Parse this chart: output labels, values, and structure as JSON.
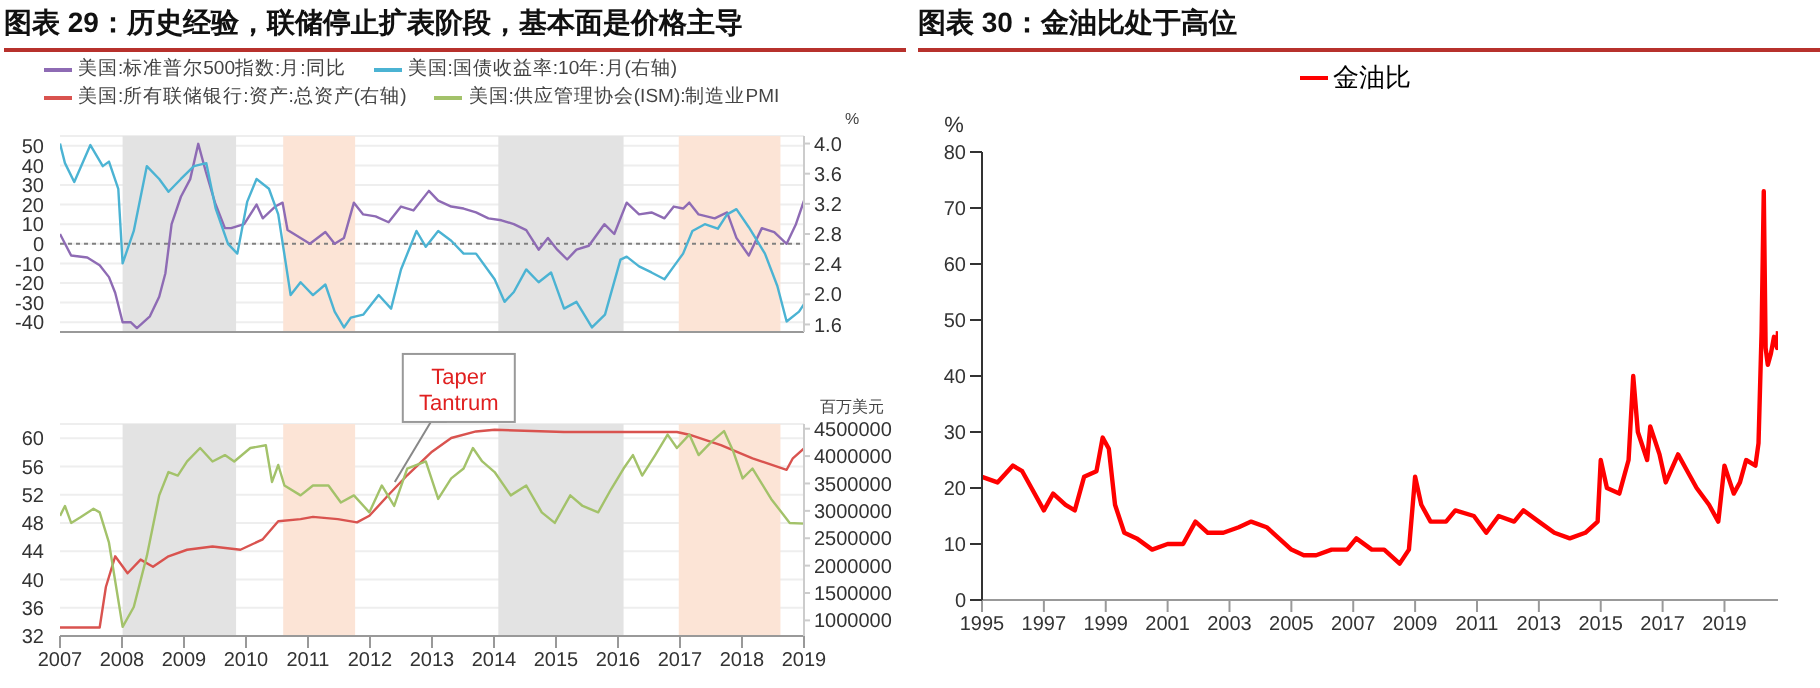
{
  "chart_data": [
    {
      "type": "line",
      "title": "图表 29：历史经验，联储停止扩表阶段，基本面是价格主导",
      "y2label": "%",
      "legend": "top",
      "grid": "y",
      "tick_labels": "y",
      "xlim": [
        2007,
        2019
      ],
      "xticks": [
        2007,
        2008,
        2009,
        2010,
        2011,
        2012,
        2013,
        2014,
        2015,
        2016,
        2017,
        2018,
        2019
      ],
      "ylim": [
        -45,
        55
      ],
      "yticks": [
        -40,
        -30,
        -20,
        -10,
        0,
        10,
        20,
        30,
        40,
        50
      ],
      "y2lim": [
        1.5,
        4.1
      ],
      "y2ticks": [
        {
          "value": 1.6,
          "label": "1.6"
        },
        {
          "value": 2,
          "label": "2.0"
        },
        2.4,
        2.8,
        3.2,
        3.6,
        {
          "value": 4,
          "label": "4.0"
        }
      ],
      "ref_lines": [
        {
          "axis": "y",
          "value": 0,
          "color": "#808080",
          "line_style": "dotted"
        }
      ],
      "bands": [
        {
          "axis": "x",
          "from": 2008.01,
          "to": 2009.84,
          "color": "#e3e3e3"
        },
        {
          "axis": "x",
          "from": 2010.6,
          "to": 2011.76,
          "color": "#fce4d6"
        },
        {
          "axis": "x",
          "from": 2014.07,
          "to": 2016.09,
          "color": "#e3e3e3"
        },
        {
          "axis": "x",
          "from": 2016.98,
          "to": 2018.62,
          "color": "#fce4d6"
        }
      ],
      "series": [
        {
          "name": "美国:标准普尔500指数:月:同比",
          "color": "#8e6bb4",
          "x": [
            2007.0,
            2007.18,
            2007.44,
            2007.64,
            2007.79,
            2007.89,
            2008.01,
            2008.14,
            2008.24,
            2008.45,
            2008.6,
            2008.7,
            2008.8,
            2008.95,
            2009.1,
            2009.23,
            2009.35,
            2009.5,
            2009.66,
            2009.76,
            2009.97,
            2010.17,
            2010.27,
            2010.47,
            2010.59,
            2010.67,
            2010.88,
            2011.03,
            2011.28,
            2011.43,
            2011.58,
            2011.74,
            2011.89,
            2012.09,
            2012.3,
            2012.5,
            2012.7,
            2012.95,
            2013.1,
            2013.31,
            2013.51,
            2013.71,
            2013.91,
            2014.12,
            2014.32,
            2014.52,
            2014.72,
            2014.87,
            2015.02,
            2015.18,
            2015.33,
            2015.53,
            2015.78,
            2015.94,
            2016.14,
            2016.34,
            2016.54,
            2016.75,
            2016.9,
            2017.05,
            2017.15,
            2017.3,
            2017.56,
            2017.76,
            2017.91,
            2018.11,
            2018.32,
            2018.52,
            2018.72,
            2018.87,
            2019.0
          ],
          "values": [
            5,
            -6,
            -7,
            -11,
            -17,
            -25,
            -40,
            -40,
            -43,
            -37,
            -27,
            -15,
            10,
            24,
            33,
            51,
            37,
            21,
            8,
            8,
            10,
            20,
            13,
            19,
            21,
            7,
            3,
            0,
            6,
            0,
            3,
            21,
            15,
            14,
            11,
            19,
            17,
            27,
            22,
            19,
            18,
            16,
            13,
            12,
            10,
            7,
            -3,
            3,
            -3,
            -8,
            -3,
            -1,
            10,
            5,
            21,
            15,
            16,
            13,
            19,
            18,
            21,
            15,
            13,
            16,
            3,
            -6,
            8,
            6,
            0,
            10,
            22
          ]
        },
        {
          "name": "美国:国债收益率:10年:月(右轴)",
          "color": "#4bb3d3",
          "axis": "y2",
          "x": [
            2007.0,
            2007.08,
            2007.23,
            2007.49,
            2007.69,
            2007.79,
            2007.94,
            2008.01,
            2008.19,
            2008.4,
            2008.6,
            2008.75,
            2008.95,
            2009.16,
            2009.36,
            2009.51,
            2009.71,
            2009.86,
            2010.02,
            2010.17,
            2010.37,
            2010.52,
            2010.72,
            2010.88,
            2011.08,
            2011.28,
            2011.43,
            2011.58,
            2011.69,
            2011.89,
            2012.14,
            2012.34,
            2012.5,
            2012.75,
            2012.9,
            2013.1,
            2013.31,
            2013.51,
            2013.71,
            2014.01,
            2014.17,
            2014.32,
            2014.52,
            2014.72,
            2014.92,
            2015.13,
            2015.33,
            2015.58,
            2015.79,
            2016.04,
            2016.14,
            2016.34,
            2016.54,
            2016.75,
            2016.9,
            2017.05,
            2017.2,
            2017.4,
            2017.61,
            2017.76,
            2017.91,
            2018.11,
            2018.37,
            2018.57,
            2018.72,
            2018.92,
            2019.0
          ],
          "values": [
            4.0,
            3.74,
            3.49,
            3.98,
            3.7,
            3.76,
            3.4,
            2.41,
            2.84,
            3.7,
            3.53,
            3.36,
            3.53,
            3.7,
            3.74,
            3.14,
            2.67,
            2.54,
            3.23,
            3.53,
            3.4,
            3.06,
            1.99,
            2.16,
            1.99,
            2.13,
            1.77,
            1.56,
            1.69,
            1.73,
            1.99,
            1.81,
            2.33,
            2.84,
            2.63,
            2.84,
            2.71,
            2.54,
            2.54,
            2.2,
            1.9,
            2.03,
            2.33,
            2.16,
            2.29,
            1.81,
            1.9,
            1.56,
            1.73,
            2.46,
            2.5,
            2.37,
            2.29,
            2.2,
            2.37,
            2.54,
            2.84,
            2.93,
            2.87,
            3.06,
            3.13,
            2.89,
            2.54,
            2.11,
            1.64,
            1.77,
            1.87
          ]
        }
      ]
    },
    {
      "type": "line",
      "y2label": "百万美元",
      "legend": "top",
      "grid": "y",
      "annotations": [
        {
          "text": "Taper Tantrum",
          "x": 2012.4,
          "y": 53.8
        }
      ],
      "xlim": [
        2007,
        2019
      ],
      "xticks": [
        2007,
        2008,
        2009,
        2010,
        2011,
        2012,
        2013,
        2014,
        2015,
        2016,
        2017,
        2018,
        2019
      ],
      "ylim": [
        32,
        62
      ],
      "yticks": [
        32,
        36,
        40,
        44,
        48,
        52,
        56,
        60
      ],
      "y2lim": [
        715000,
        4586000
      ],
      "y2ticks": [
        1000000,
        1500000,
        2000000,
        2500000,
        3000000,
        3500000,
        4000000,
        4500000
      ],
      "bands": [
        {
          "axis": "x",
          "from": 2008.01,
          "to": 2009.84,
          "color": "#e3e3e3"
        },
        {
          "axis": "x",
          "from": 2010.6,
          "to": 2011.76,
          "color": "#fce4d6"
        },
        {
          "axis": "x",
          "from": 2014.07,
          "to": 2016.09,
          "color": "#e3e3e3"
        },
        {
          "axis": "x",
          "from": 2016.98,
          "to": 2018.62,
          "color": "#fce4d6"
        }
      ],
      "series": [
        {
          "name": "美国:所有联储银行:资产:总资产(右轴)",
          "color": "#d9534f",
          "axis": "y2",
          "x": [
            2007.0,
            2007.64,
            2007.74,
            2007.89,
            2008.09,
            2008.3,
            2008.5,
            2008.75,
            2009.05,
            2009.46,
            2009.91,
            2010.27,
            2010.52,
            2010.88,
            2011.08,
            2011.48,
            2011.79,
            2011.99,
            2012.29,
            2012.6,
            2013.0,
            2013.31,
            2013.71,
            2014.01,
            2015.13,
            2016.14,
            2016.95,
            2017.15,
            2017.66,
            2018.17,
            2018.72,
            2018.82,
            2019.0
          ],
          "values": [
            870000,
            870000,
            1610000,
            2170000,
            1860000,
            2110000,
            1980000,
            2170000,
            2290000,
            2350000,
            2290000,
            2480000,
            2810000,
            2850000,
            2890000,
            2850000,
            2790000,
            2910000,
            3280000,
            3650000,
            4080000,
            4330000,
            4450000,
            4480000,
            4440000,
            4440000,
            4440000,
            4390000,
            4200000,
            3960000,
            3750000,
            3960000,
            4140000
          ]
        },
        {
          "name": "美国:供应管理协会(ISM):制造业PMI",
          "color": "#a3c26a",
          "x": [
            2007.0,
            2007.08,
            2007.18,
            2007.33,
            2007.54,
            2007.64,
            2007.79,
            2008.01,
            2008.19,
            2008.4,
            2008.6,
            2008.75,
            2008.9,
            2009.05,
            2009.26,
            2009.46,
            2009.66,
            2009.81,
            2010.07,
            2010.32,
            2010.42,
            2010.52,
            2010.62,
            2010.88,
            2011.08,
            2011.33,
            2011.53,
            2011.74,
            2011.99,
            2012.19,
            2012.39,
            2012.6,
            2012.9,
            2013.1,
            2013.31,
            2013.51,
            2013.66,
            2013.81,
            2014.01,
            2014.27,
            2014.52,
            2014.77,
            2014.98,
            2015.23,
            2015.43,
            2015.68,
            2015.89,
            2016.09,
            2016.24,
            2016.39,
            2016.6,
            2016.8,
            2016.95,
            2017.15,
            2017.3,
            2017.51,
            2017.71,
            2017.86,
            2018.01,
            2018.17,
            2018.47,
            2018.77,
            2019.0
          ],
          "values": [
            49,
            50.4,
            48,
            48.8,
            50,
            49.5,
            45.2,
            33.3,
            36.1,
            43.3,
            51.9,
            55.2,
            54.7,
            56.7,
            58.6,
            56.7,
            57.6,
            56.7,
            58.6,
            59,
            53.8,
            56.2,
            53.3,
            51.9,
            53.3,
            53.3,
            50.9,
            51.9,
            49.5,
            53.3,
            50.4,
            55.7,
            56.7,
            51.4,
            54.3,
            55.7,
            58.6,
            56.7,
            55.2,
            51.9,
            53.3,
            49.5,
            48,
            51.9,
            50.4,
            49.5,
            52.8,
            55.7,
            57.6,
            54.7,
            57.6,
            60.5,
            58.6,
            60.5,
            57.6,
            59.5,
            61,
            58.1,
            54.3,
            55.7,
            51.4,
            48,
            47.9
          ]
        }
      ]
    },
    {
      "type": "line",
      "title": "图表 30：金油比处于高位",
      "ylabel": "%",
      "legend": "top",
      "xlim": [
        1995,
        2020.73
      ],
      "xticks": [
        1995,
        1997,
        1999,
        2001,
        2003,
        2005,
        2007,
        2009,
        2011,
        2013,
        2015,
        2017,
        2019
      ],
      "ylim": [
        0,
        80
      ],
      "yticks": [
        0,
        10,
        20,
        30,
        40,
        50,
        60,
        70,
        80
      ],
      "series": [
        {
          "name": "金油比",
          "color": "#ff0000",
          "x": [
            1995.0,
            1995.5,
            1996.0,
            1996.3,
            1996.6,
            1997.0,
            1997.3,
            1997.7,
            1998.0,
            1998.3,
            1998.7,
            1998.9,
            1999.1,
            1999.3,
            1999.6,
            2000.0,
            2000.5,
            2001.0,
            2001.5,
            2001.9,
            2002.3,
            2002.8,
            2003.3,
            2003.7,
            2004.2,
            2004.6,
            2005.0,
            2005.4,
            2005.8,
            2006.3,
            2006.8,
            2007.1,
            2007.6,
            2008.0,
            2008.5,
            2008.8,
            2009.0,
            2009.2,
            2009.5,
            2010.0,
            2010.3,
            2010.9,
            2011.3,
            2011.7,
            2012.2,
            2012.5,
            2013.0,
            2013.5,
            2014.0,
            2014.5,
            2014.9,
            2015.0,
            2015.2,
            2015.6,
            2015.9,
            2016.05,
            2016.2,
            2016.5,
            2016.6,
            2016.9,
            2017.1,
            2017.5,
            2017.8,
            2018.1,
            2018.5,
            2018.8,
            2019.0,
            2019.3,
            2019.5,
            2019.7,
            2020.0,
            2020.1,
            2020.2,
            2020.27,
            2020.33,
            2020.4,
            2020.5,
            2020.6,
            2020.7,
            2020.73
          ],
          "values": [
            22,
            21,
            24,
            23,
            20,
            16,
            19,
            17,
            16,
            22,
            23,
            29,
            27,
            17,
            12,
            11,
            9,
            10,
            10,
            14,
            12,
            12,
            13,
            14,
            13,
            11,
            9,
            8,
            8,
            9,
            9,
            11,
            9,
            9,
            6.5,
            9,
            22,
            17,
            14,
            14,
            16,
            15,
            12,
            15,
            14,
            16,
            14,
            12,
            11,
            12,
            14,
            25,
            20,
            19,
            25,
            40,
            30,
            25,
            31,
            26,
            21,
            26,
            23,
            20,
            17,
            14,
            24,
            19,
            21,
            25,
            24,
            28,
            48,
            73,
            45,
            42,
            44,
            47,
            45,
            48
          ]
        }
      ]
    }
  ]
}
